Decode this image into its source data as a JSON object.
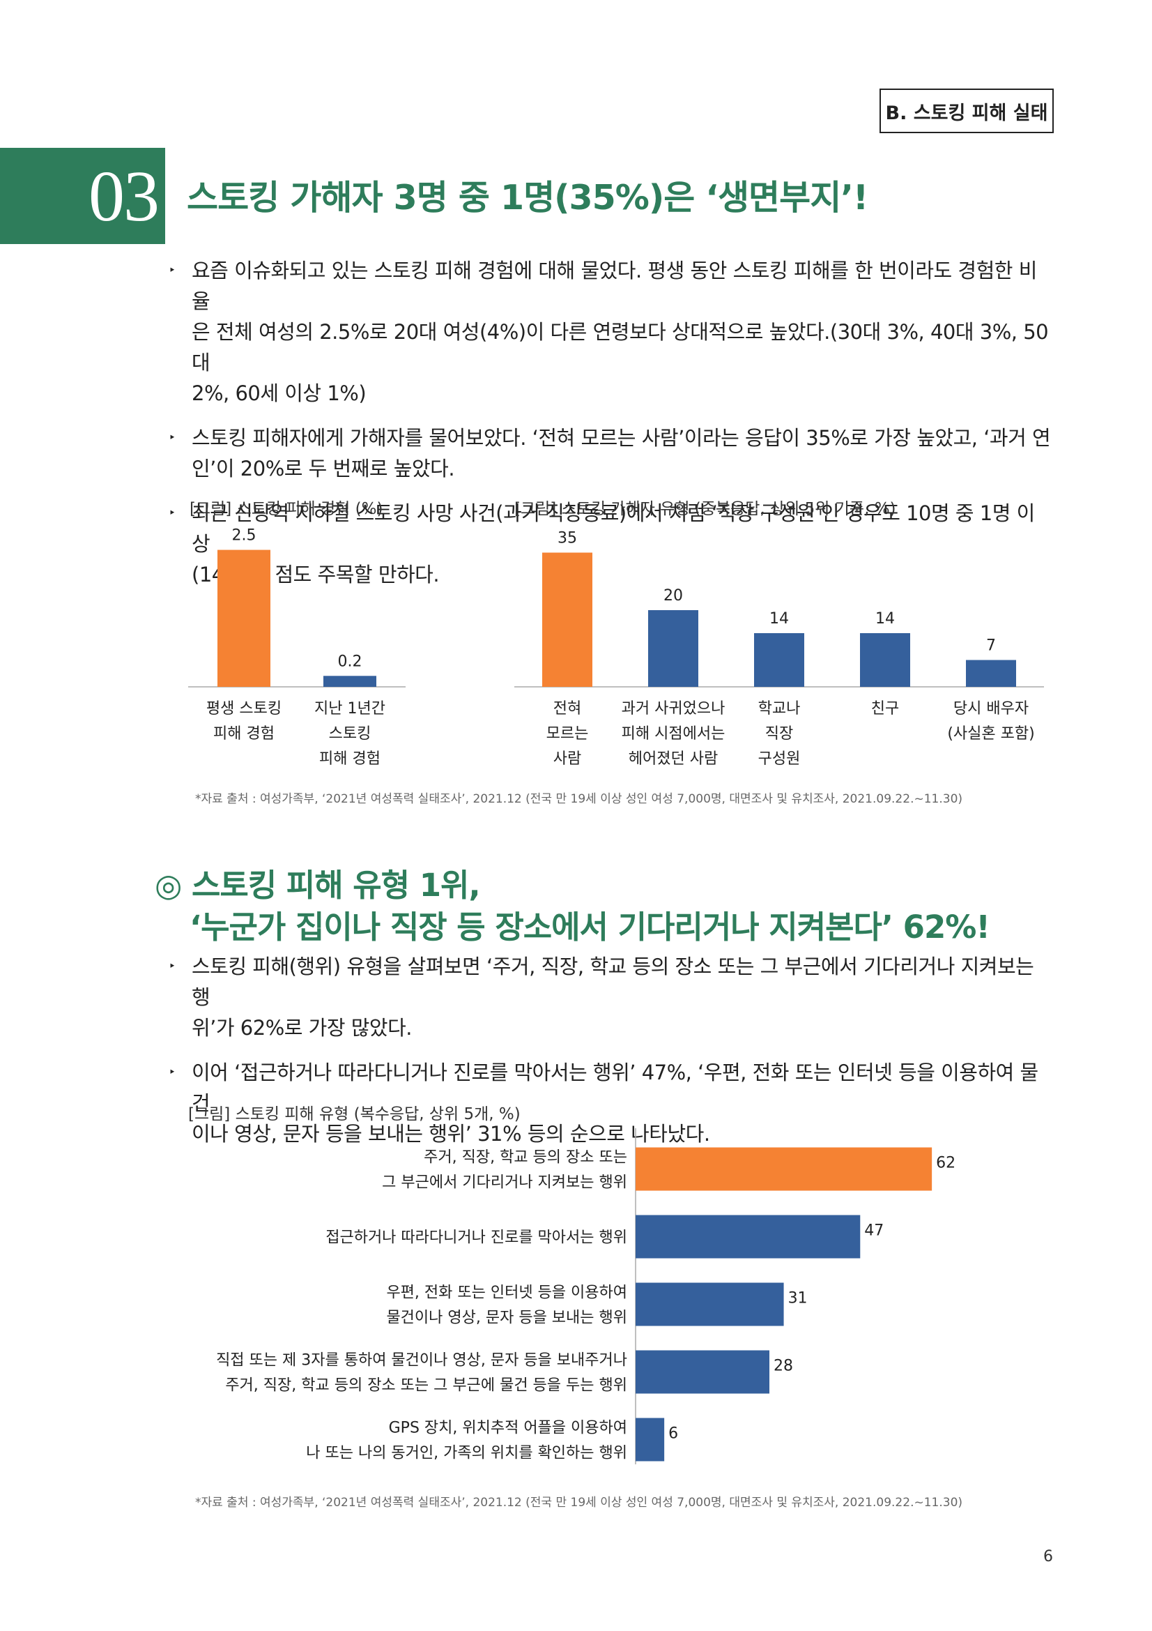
{
  "header": {
    "section_tag": "B. 스토킹 피해 실태"
  },
  "section": {
    "number": "03",
    "title": "스토킹 가해자 3명 중 1명(35%)은 ‘생면부지’!",
    "bullets": [
      {
        "lines": [
          "요즘 이슈화되고 있는 스토킹 피해 경험에 대해 물었다. 평생 동안 스토킹 피해를 한 번이라도 경험한 비율",
          "은 전체 여성의 2.5%로 20대 여성(4%)이 다른 연령보다 상대적으로 높았다.(30대 3%, 40대 3%, 50대",
          "2%, 60세 이상 1%)"
        ]
      },
      {
        "lines": [
          "스토킹 피해자에게 가해자를 물어보았다. ‘전혀 모르는 사람’이라는 응답이 35%로 가장 높았고, ‘과거 연",
          "인’이 20%로 두 번째로 높았다."
        ]
      },
      {
        "lines": [
          "최근 신당역 지하철 스토킹 사망 사건(과거 직장동료)에서 처럼 ‘직장 구성원’인 경우도 10명 중 1명 이상",
          "(14%)인 점도 주목할 만하다."
        ]
      }
    ],
    "bullet_marker": "‣"
  },
  "source_note": "*자료 출처 : 여성가족부, ‘2021년 여성폭력 실태조사’, 2021.12 (전국 만 19세 이상 성인 여성 7,000명, 대면조사 및 유치조사, 2021.09.22.~11.30)",
  "colors": {
    "accent_green": "#2e7d5b",
    "highlight": "#f58233",
    "bar": "#35609c",
    "axis": "#aaaaaa"
  },
  "subsection": {
    "marker": "◎",
    "title_lines": [
      "스토킹 피해 유형 1위,",
      "‘누군가 집이나 직장 등 장소에서 기다리거나 지켜본다’ 62%!"
    ],
    "bullets": [
      {
        "lines": [
          "스토킹 피해(행위) 유형을 살펴보면 ‘주거, 직장, 학교 등의 장소 또는 그 부근에서 기다리거나 지켜보는 행",
          "위’가 62%로 가장 많았다."
        ]
      },
      {
        "lines": [
          "이어 ‘접근하거나 따라다니거나 진로를 막아서는 행위’ 47%, ‘우편, 전화 또는 인터넷 등을 이용하여 물건",
          "이나 영상, 문자 등을 보내는 행위’ 31% 등의 순으로 나타났다."
        ]
      }
    ]
  },
  "page_number": "6",
  "chart_data": [
    {
      "type": "bar",
      "title": "[그림] 스토킹 피해 경험 (%)",
      "categories": [
        [
          "평생 스토킹",
          "피해 경험"
        ],
        [
          "지난 1년간",
          "스토킹",
          "피해 경험"
        ]
      ],
      "values": [
        2.5,
        0.2
      ],
      "value_labels": [
        "2.5",
        "0.2"
      ],
      "highlight_index": 0,
      "ylim": [
        0,
        2.8
      ]
    },
    {
      "type": "bar",
      "title": "[그림] 스토킹 가해자 유형 (중복응답, 상위 5위 기준, %)",
      "categories": [
        [
          "전혀",
          "모르는",
          "사람"
        ],
        [
          "과거 사귀었으나",
          "피해 시점에서는",
          "헤어졌던 사람"
        ],
        [
          "학교나",
          "직장",
          "구성원"
        ],
        [
          "친구"
        ],
        [
          "당시 배우자",
          "(사실혼 포함)"
        ]
      ],
      "values": [
        35,
        20,
        14,
        14,
        7
      ],
      "value_labels": [
        "35",
        "20",
        "14",
        "14",
        "7"
      ],
      "highlight_index": 0,
      "ylim": [
        0,
        40
      ]
    },
    {
      "type": "bar",
      "orientation": "horizontal",
      "title": "[그림] 스토킹 피해 유형 (복수응답, 상위 5개, %)",
      "categories": [
        [
          "주거, 직장, 학교 등의 장소 또는",
          "그 부근에서 기다리거나 지켜보는 행위"
        ],
        [
          "접근하거나 따라다니거나 진로를 막아서는 행위"
        ],
        [
          "우편, 전화 또는 인터넷 등을 이용하여",
          "물건이나 영상, 문자 등을 보내는 행위"
        ],
        [
          "직접 또는 제 3자를 통하여 물건이나 영상, 문자 등을 보내주거나",
          "주거, 직장, 학교 등의 장소 또는 그 부근에 물건 등을 두는 행위"
        ],
        [
          "GPS 장치, 위치추적 어플을 이용하여",
          "나 또는 나의 동거인, 가족의 위치를 확인하는 행위"
        ]
      ],
      "values": [
        62,
        47,
        31,
        28,
        6
      ],
      "value_labels": [
        "62",
        "47",
        "31",
        "28",
        "6"
      ],
      "highlight_index": 0,
      "xlim": [
        0,
        70
      ]
    }
  ]
}
